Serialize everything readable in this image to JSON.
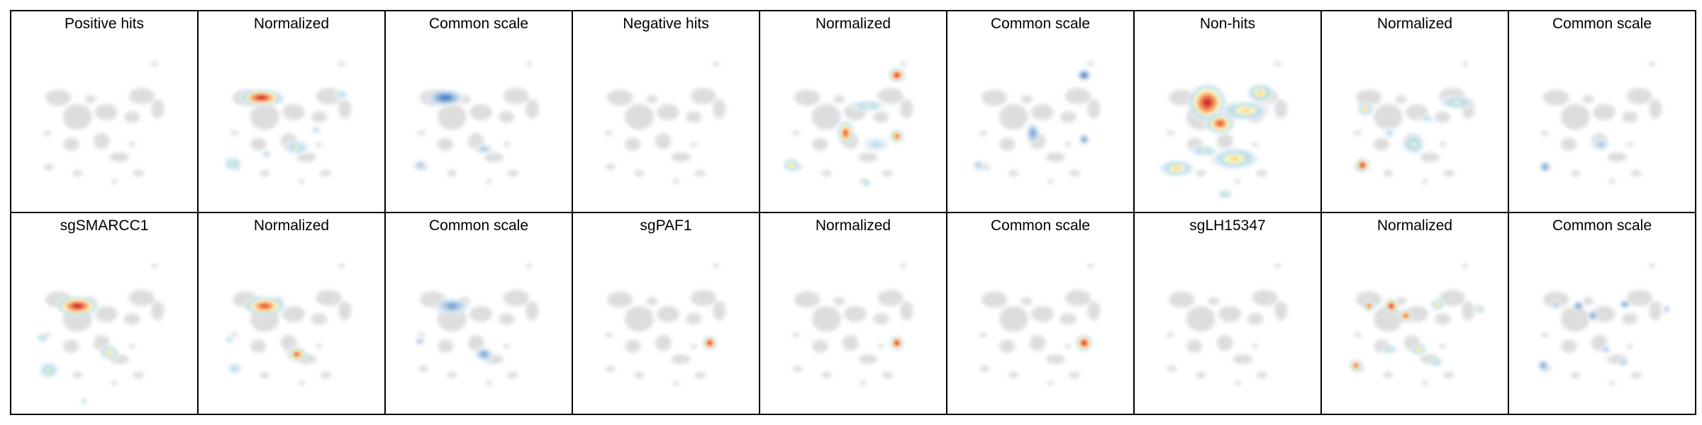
{
  "chart_data": {
    "type": "heatmap",
    "description_of_encoding": "Grid of UMAP density panels. Each panel shows the grey reference embedding with a kernel-density overlay of cells from the named group. 'Normalized' panels are scaled per panel (RdYlBu_r colormap); 'Common scale' panels share one scale across the figure (blue where density is low relative to the common maximum).",
    "rows": 2,
    "columns": 9,
    "panels": [
      {
        "title": "Positive hits",
        "mode": "raw",
        "colormap": "none",
        "hotspots": []
      },
      {
        "title": "Normalized",
        "mode": "normalized",
        "colormap": "RdYlBu_r",
        "hotspots": [
          [
            0.3,
            0.33,
            1.0,
            34,
            14
          ],
          [
            0.12,
            0.74,
            0.45,
            16,
            12
          ],
          [
            0.52,
            0.64,
            0.4,
            22,
            12
          ],
          [
            0.33,
            0.68,
            0.3,
            10,
            8
          ],
          [
            0.8,
            0.31,
            0.3,
            14,
            10
          ],
          [
            0.64,
            0.53,
            0.22,
            10,
            8
          ]
        ]
      },
      {
        "title": "Common scale",
        "mode": "common",
        "colormap": "Blues",
        "hotspots": [
          [
            0.28,
            0.33,
            0.85,
            30,
            14
          ],
          [
            0.12,
            0.75,
            0.3,
            14,
            10
          ],
          [
            0.52,
            0.65,
            0.2,
            18,
            10
          ]
        ]
      },
      {
        "title": "Negative hits",
        "mode": "raw",
        "colormap": "none",
        "hotspots": []
      },
      {
        "title": "Normalized",
        "mode": "normalized",
        "colormap": "RdYlBu_r",
        "hotspots": [
          [
            0.76,
            0.19,
            0.95,
            14,
            12
          ],
          [
            0.44,
            0.55,
            0.7,
            14,
            20
          ],
          [
            0.76,
            0.57,
            0.7,
            12,
            12
          ],
          [
            0.1,
            0.75,
            0.55,
            14,
            12
          ],
          [
            0.58,
            0.38,
            0.35,
            30,
            10
          ],
          [
            0.63,
            0.62,
            0.3,
            26,
            14
          ],
          [
            0.57,
            0.86,
            0.35,
            8,
            8
          ]
        ]
      },
      {
        "title": "Common scale",
        "mode": "common",
        "colormap": "Blues",
        "hotspots": [
          [
            0.76,
            0.19,
            0.8,
            12,
            10
          ],
          [
            0.44,
            0.55,
            0.6,
            12,
            18
          ],
          [
            0.76,
            0.59,
            0.65,
            10,
            10
          ],
          [
            0.1,
            0.75,
            0.35,
            12,
            10
          ]
        ]
      },
      {
        "title": "Non-hits",
        "mode": "normalized",
        "colormap": "RdYlBu_r",
        "hotspots": [
          [
            0.36,
            0.36,
            1.0,
            30,
            30
          ],
          [
            0.44,
            0.49,
            0.75,
            24,
            18
          ],
          [
            0.6,
            0.41,
            0.6,
            40,
            16
          ],
          [
            0.69,
            0.3,
            0.55,
            22,
            16
          ],
          [
            0.53,
            0.71,
            0.55,
            40,
            18
          ],
          [
            0.17,
            0.77,
            0.6,
            30,
            14
          ],
          [
            0.34,
            0.66,
            0.45,
            24,
            10
          ],
          [
            0.47,
            0.93,
            0.35,
            14,
            8
          ]
        ]
      },
      {
        "title": "Normalized",
        "mode": "normalized",
        "colormap": "RdYlBu_r",
        "hotspots": [
          [
            0.16,
            0.75,
            0.95,
            12,
            12
          ],
          [
            0.18,
            0.4,
            0.5,
            14,
            12
          ],
          [
            0.75,
            0.36,
            0.45,
            30,
            12
          ],
          [
            0.48,
            0.62,
            0.4,
            20,
            18
          ],
          [
            0.33,
            0.55,
            0.3,
            12,
            10
          ],
          [
            0.56,
            0.46,
            0.25,
            16,
            8
          ]
        ]
      },
      {
        "title": "Common scale",
        "mode": "common",
        "colormap": "Blues",
        "hotspots": [
          [
            0.13,
            0.76,
            0.55,
            10,
            10
          ],
          [
            0.48,
            0.62,
            0.15,
            16,
            12
          ]
        ]
      },
      {
        "title": "sgSMARCC1",
        "mode": "normalized",
        "colormap": "RdYlBu_r",
        "hotspots": [
          [
            0.32,
            0.37,
            1.0,
            34,
            16
          ],
          [
            0.14,
            0.77,
            0.45,
            18,
            14
          ],
          [
            0.52,
            0.66,
            0.6,
            16,
            12
          ],
          [
            0.1,
            0.57,
            0.35,
            10,
            8
          ],
          [
            0.36,
            0.96,
            0.3,
            8,
            6
          ]
        ]
      },
      {
        "title": "Normalized",
        "mode": "normalized",
        "colormap": "RdYlBu_r",
        "hotspots": [
          [
            0.32,
            0.37,
            0.85,
            34,
            16
          ],
          [
            0.52,
            0.67,
            0.7,
            16,
            12
          ],
          [
            0.1,
            0.58,
            0.3,
            10,
            8
          ],
          [
            0.13,
            0.76,
            0.3,
            14,
            12
          ]
        ]
      },
      {
        "title": "Common scale",
        "mode": "common",
        "colormap": "Blues",
        "hotspots": [
          [
            0.32,
            0.37,
            0.6,
            30,
            14
          ],
          [
            0.52,
            0.67,
            0.55,
            16,
            12
          ],
          [
            0.12,
            0.59,
            0.35,
            10,
            8
          ]
        ]
      },
      {
        "title": "sgPAF1",
        "mode": "normalized",
        "colormap": "RdYlBu_r",
        "hotspots": [
          [
            0.76,
            0.6,
            1.0,
            12,
            12
          ]
        ]
      },
      {
        "title": "Normalized",
        "mode": "normalized",
        "colormap": "RdYlBu_r",
        "hotspots": [
          [
            0.76,
            0.6,
            0.95,
            12,
            12
          ]
        ]
      },
      {
        "title": "Common scale",
        "mode": "common",
        "colormap": "RdYlBu_r",
        "hotspots": [
          [
            0.76,
            0.6,
            1.0,
            14,
            14
          ]
        ]
      },
      {
        "title": "sgLH15347",
        "mode": "raw",
        "colormap": "none",
        "hotspots": []
      },
      {
        "title": "Normalized",
        "mode": "normalized",
        "colormap": "RdYlBu_r",
        "hotspots": [
          [
            0.34,
            0.37,
            0.9,
            12,
            12
          ],
          [
            0.43,
            0.43,
            0.85,
            12,
            12
          ],
          [
            0.2,
            0.37,
            0.7,
            10,
            10
          ],
          [
            0.63,
            0.36,
            0.65,
            12,
            10
          ],
          [
            0.89,
            0.39,
            0.55,
            10,
            8
          ],
          [
            0.12,
            0.74,
            0.7,
            12,
            10
          ],
          [
            0.51,
            0.64,
            0.55,
            14,
            10
          ],
          [
            0.33,
            0.64,
            0.45,
            14,
            8
          ],
          [
            0.62,
            0.72,
            0.35,
            12,
            8
          ]
        ]
      },
      {
        "title": "Common scale",
        "mode": "common",
        "colormap": "Blues",
        "hotspots": [
          [
            0.34,
            0.37,
            0.6,
            10,
            10
          ],
          [
            0.43,
            0.43,
            0.6,
            10,
            10
          ],
          [
            0.2,
            0.36,
            0.4,
            8,
            8
          ],
          [
            0.63,
            0.36,
            0.45,
            10,
            8
          ],
          [
            0.89,
            0.39,
            0.35,
            8,
            8
          ],
          [
            0.12,
            0.74,
            0.45,
            10,
            10
          ],
          [
            0.51,
            0.64,
            0.3,
            10,
            8
          ],
          [
            0.62,
            0.72,
            0.25,
            10,
            8
          ]
        ]
      }
    ]
  },
  "colors": {
    "background": "#ffffff",
    "frame": "#000000",
    "embedding_grey": "#dddddd",
    "colormap_rdylbu_r": [
      "#ffffff",
      "#e3eef6",
      "#abd9e9",
      "#ffffbf",
      "#fdae61",
      "#f46d43",
      "#d73027",
      "#b2182b"
    ],
    "colormap_blues": [
      "#ffffff",
      "#dbe7f3",
      "#9dbfe0",
      "#5b8fcb",
      "#3b6fb6"
    ]
  },
  "umap_shapes": {
    "note": "Shared grey reference embedding drawn identically in every panel (blob centres in panel-relative units).",
    "blobs": [
      [
        0.2,
        0.33,
        0.16,
        0.1
      ],
      [
        0.32,
        0.45,
        0.18,
        0.16
      ],
      [
        0.28,
        0.62,
        0.1,
        0.08
      ],
      [
        0.5,
        0.42,
        0.14,
        0.1
      ],
      [
        0.47,
        0.6,
        0.1,
        0.1
      ],
      [
        0.58,
        0.7,
        0.12,
        0.06
      ],
      [
        0.72,
        0.32,
        0.16,
        0.1
      ],
      [
        0.82,
        0.4,
        0.08,
        0.12
      ],
      [
        0.66,
        0.45,
        0.1,
        0.07
      ],
      [
        0.8,
        0.12,
        0.04,
        0.03
      ],
      [
        0.4,
        0.34,
        0.07,
        0.05
      ],
      [
        0.13,
        0.55,
        0.05,
        0.03
      ],
      [
        0.14,
        0.76,
        0.06,
        0.04
      ],
      [
        0.32,
        0.8,
        0.06,
        0.04
      ],
      [
        0.55,
        0.85,
        0.04,
        0.03
      ],
      [
        0.7,
        0.8,
        0.07,
        0.04
      ],
      [
        0.66,
        0.62,
        0.04,
        0.03
      ]
    ]
  }
}
